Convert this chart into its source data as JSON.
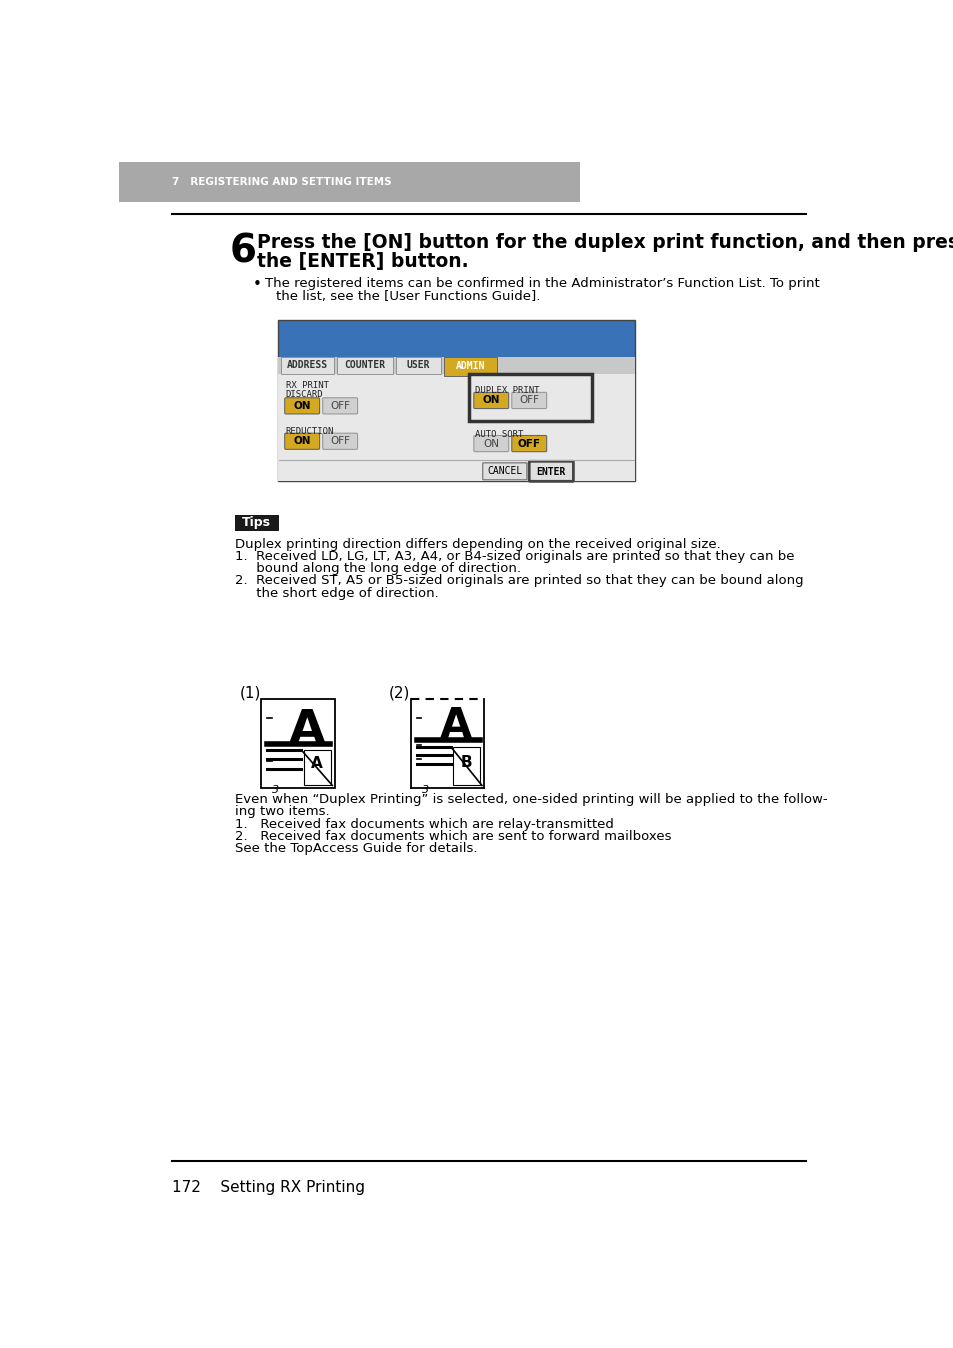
{
  "header_text": "7   REGISTERING AND SETTING ITEMS",
  "header_bg": "#a8a8a8",
  "step_number": "6",
  "step_title_line1": "Press the [ON] button for the duplex print function, and then press",
  "step_title_line2": "the [ENTER] button.",
  "bullet_text_line1": "The registered items can be confirmed in the Administrator’s Function List. To print",
  "bullet_text_line2": "the list, see the [User Functions Guide].",
  "tips_label": "Tips",
  "tips_bg": "#1a1a1a",
  "tips_text_color": "#ffffff",
  "tips_line0": "Duplex printing direction differs depending on the received original size.",
  "tips_line1": "1.  Received LD, LG, LT, A3, A4, or B4-sized originals are printed so that they can be",
  "tips_line1b": "     bound along the long edge of direction.",
  "tips_line2": "2.  Received ST, A5 or B5-sized originals are printed so that they can be bound along",
  "tips_line2b": "     the short edge of direction.",
  "diagram_label1": "(1)",
  "diagram_label2": "(2)",
  "after_text_line1": "Even when “Duplex Printing” is selected, one-sided printing will be applied to the follow-",
  "after_text_line2": "ing two items.",
  "after_text_line3": "1.   Received fax documents which are relay-transmitted",
  "after_text_line4": "2.   Received fax documents which are sent to forward mailboxes",
  "after_text_line5": "See the TopAccess Guide for details.",
  "footer_text": "172    Setting RX Printing",
  "screen_bg": "#3a72b8",
  "tab_labels": [
    "ADDRESS",
    "COUNTER",
    "USER",
    "ADMIN"
  ],
  "active_tab": "ADMIN",
  "active_tab_color": "#d4a820",
  "inactive_tab_color": "#e2e2e2",
  "on_btn_color": "#d4a820",
  "off_btn_color": "#d0d0d0",
  "enter_btn_color": "#e0e0e0",
  "screen_content_bg": "#e8e8e8"
}
